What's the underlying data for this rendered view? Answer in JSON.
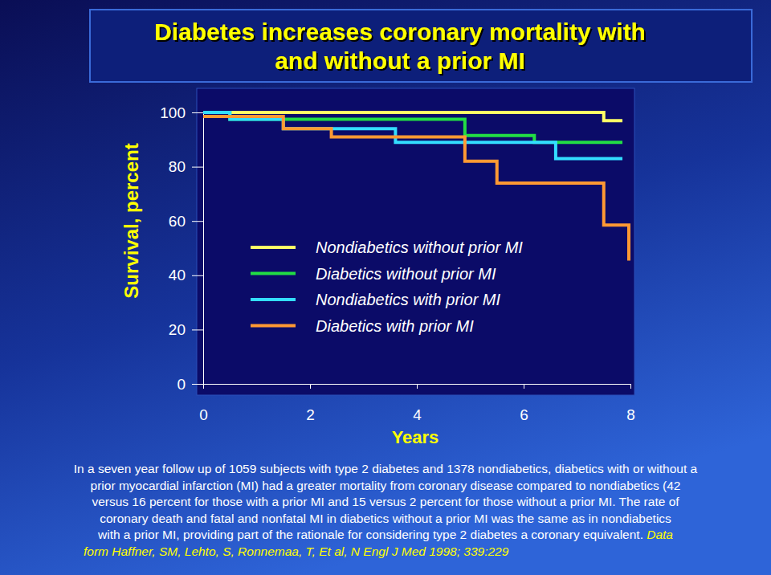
{
  "chart_data": {
    "type": "line",
    "title": [
      "Diabetes increases coronary mortality with",
      "and without a prior MI"
    ],
    "x_label": "Years",
    "y_label": "Survival, percent",
    "xlim": [
      0,
      8
    ],
    "xticks": [
      0,
      2,
      4,
      6,
      8
    ],
    "ylim": [
      0,
      100
    ],
    "yticks": [
      0,
      20,
      40,
      60,
      80,
      100
    ],
    "line_style": "step",
    "series": [
      {
        "name": "Nondiabetics without prior MI",
        "color": "#ffff66",
        "x": [
          0,
          7.5,
          7.85
        ],
        "values": [
          100,
          97,
          97
        ]
      },
      {
        "name": "Diabetics without prior MI",
        "color": "#22dd44",
        "x": [
          0,
          0.5,
          4.9,
          6.2,
          7.85
        ],
        "values": [
          100,
          97.5,
          91.5,
          89,
          89
        ]
      },
      {
        "name": "Nondiabetics with prior MI",
        "color": "#33ddff",
        "x": [
          0,
          0.5,
          1.5,
          3.6,
          6.6,
          7.85
        ],
        "values": [
          100,
          97.5,
          94,
          89,
          83,
          83
        ]
      },
      {
        "name": "Diabetics with prior MI",
        "color": "#ff9933",
        "x": [
          0,
          1.5,
          2.4,
          4.9,
          5.5,
          7.5,
          7.97,
          8
        ],
        "values": [
          98.5,
          94,
          91,
          82,
          74,
          58.5,
          46,
          46
        ]
      }
    ],
    "caption": [
      "In a seven year follow up of 1059 subjects with type 2 diabetes and 1378 nondiabetics, diabetics with or without a",
      "prior myocardial infarction (MI) had a greater mortality from coronary disease compared to nondiabetics (42",
      "versus 16 percent for those with a prior MI and 15 versus 2 percent for those without a prior MI. The rate of",
      "coronary death and fatal and nonfatal MI in diabetics without a prior MI was the same as in nondiabetics",
      "with a prior MI, providing part of the rationale for considering type 2 diabetes a coronary equivalent."
    ],
    "source": [
      "Data",
      "form Haffner, SM, Lehto, S, Ronnemaa, T, Et al, N Engl J Med 1998; 339:229"
    ]
  }
}
